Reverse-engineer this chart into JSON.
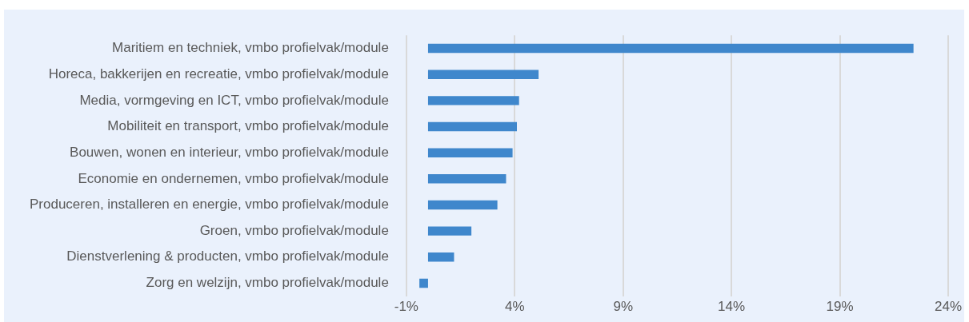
{
  "chart_data": {
    "type": "bar",
    "orientation": "horizontal",
    "categories": [
      "Maritiem en techniek, vmbo profielvak/module",
      "Horeca, bakkerijen en recreatie, vmbo profielvak/module",
      "Media, vormgeving en ICT, vmbo profielvak/module",
      "Mobiliteit en transport, vmbo profielvak/module",
      "Bouwen, wonen en interieur, vmbo profielvak/module",
      "Economie en ondernemen, vmbo profielvak/module",
      "Produceren, installeren en energie, vmbo profielvak/module",
      "Groen, vmbo profielvak/module",
      "Dienstverlening & producten, vmbo profielvak/module",
      "Zorg en welzijn, vmbo profielvak/module"
    ],
    "values": [
      22.4,
      5.1,
      4.2,
      4.1,
      3.9,
      3.6,
      3.2,
      2.0,
      1.2,
      -0.4
    ],
    "color": "#3f87cc",
    "xlim": [
      -1,
      24
    ],
    "xticks": [
      {
        "value": -1,
        "label": "-1%"
      },
      {
        "value": 4,
        "label": "4%"
      },
      {
        "value": 9,
        "label": "9%"
      },
      {
        "value": 14,
        "label": "14%"
      },
      {
        "value": 19,
        "label": "19%"
      },
      {
        "value": 24,
        "label": "24%"
      }
    ],
    "grid": "x"
  }
}
